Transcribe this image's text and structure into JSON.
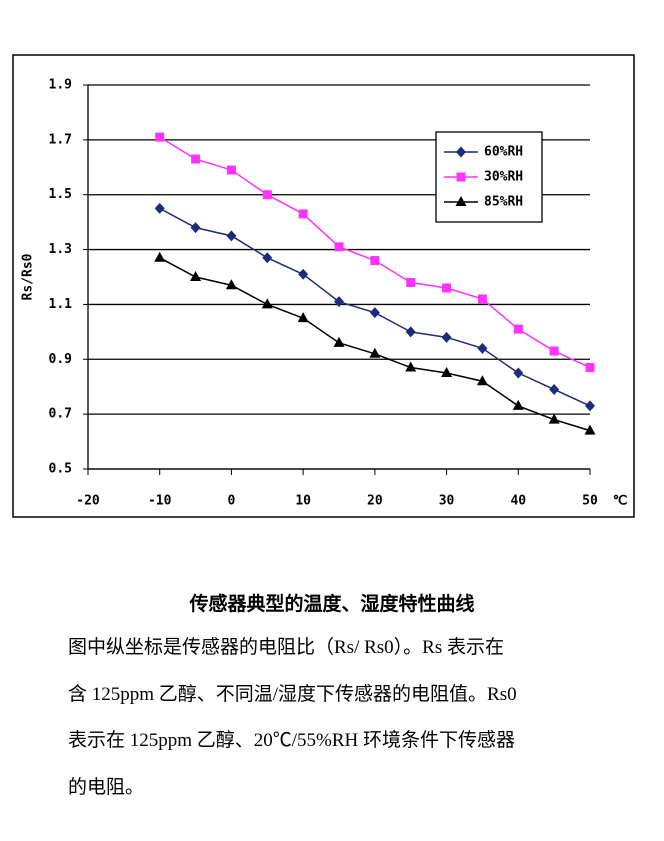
{
  "chart_data": {
    "type": "line",
    "ylabel": "Rs/Rs0",
    "xlabel": "℃",
    "x": [
      -10,
      -5,
      0,
      5,
      10,
      15,
      20,
      25,
      30,
      35,
      40,
      45,
      50
    ],
    "series": [
      {
        "name": "60%RH",
        "color": "#1f2a7a",
        "marker": "diamond",
        "values": [
          1.45,
          1.38,
          1.35,
          1.27,
          1.21,
          1.11,
          1.07,
          1.0,
          0.98,
          0.94,
          0.85,
          0.79,
          0.73
        ]
      },
      {
        "name": "30%RH",
        "color": "#ff33ff",
        "marker": "square",
        "values": [
          1.71,
          1.63,
          1.59,
          1.5,
          1.43,
          1.31,
          1.26,
          1.18,
          1.16,
          1.12,
          1.01,
          0.93,
          0.87
        ]
      },
      {
        "name": "85%RH",
        "color": "#000000",
        "marker": "triangle",
        "values": [
          1.27,
          1.2,
          1.17,
          1.1,
          1.05,
          0.96,
          0.92,
          0.87,
          0.85,
          0.82,
          0.73,
          0.68,
          0.64
        ]
      }
    ],
    "xlim": [
      -20,
      50
    ],
    "xticks": [
      -20,
      -10,
      0,
      10,
      20,
      30,
      40,
      50
    ],
    "ylim": [
      0.5,
      1.9
    ],
    "yticks": [
      0.5,
      0.7,
      0.9,
      1.1,
      1.3,
      1.5,
      1.7,
      1.9
    ],
    "grid": true,
    "legend": "upper right"
  },
  "caption": {
    "title": "传感器典型的温度、湿度特性曲线",
    "lines": [
      "图中纵坐标是传感器的电阻比（Rs/ Rs0）。Rs 表示在",
      "含 125ppm 乙醇、不同温/湿度下传感器的电阻值。Rs0",
      "表示在 125ppm 乙醇、20℃/55%RH 环境条件下传感器",
      "的电阻。"
    ]
  }
}
